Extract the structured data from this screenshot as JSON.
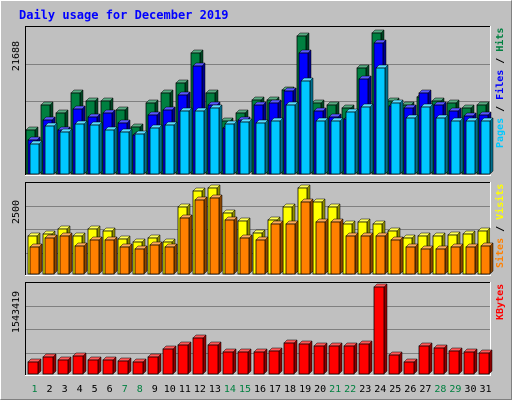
{
  "chart_data": {
    "type": "bar",
    "title": "Daily usage for December 2019",
    "categories": [
      "1",
      "2",
      "3",
      "4",
      "5",
      "6",
      "7",
      "8",
      "9",
      "10",
      "11",
      "12",
      "13",
      "14",
      "15",
      "16",
      "17",
      "18",
      "19",
      "20",
      "21",
      "22",
      "23",
      "24",
      "25",
      "26",
      "27",
      "28",
      "29",
      "30",
      "31"
    ],
    "weekend_days": [
      "1",
      "7",
      "8",
      "14",
      "15",
      "21",
      "22",
      "28",
      "29"
    ],
    "panels": [
      {
        "id": "hits-files-pages",
        "ymax": 21688,
        "ytick_label": "21688",
        "legend": [
          {
            "label": "Pages",
            "color": "#00c8ff"
          },
          {
            "label": "Files",
            "color": "#0000ff"
          },
          {
            "label": "Hits",
            "color": "#008040"
          }
        ],
        "series": [
          {
            "name": "Hits",
            "color": "#008040",
            "values": [
              6500,
              10200,
              9000,
              12000,
              10800,
              10800,
              9500,
              7000,
              10500,
              12000,
              13500,
              18000,
              12000,
              7800,
              9000,
              11000,
              11000,
              12500,
              20500,
              10500,
              10200,
              9800,
              15800,
              21000,
              10800,
              10200,
              11500,
              10800,
              10500,
              9800,
              10200
            ]
          },
          {
            "name": "Files",
            "color": "#0000ff",
            "values": [
              5000,
              8000,
              6600,
              9600,
              8500,
              9000,
              7600,
              5800,
              8800,
              9500,
              11800,
              16000,
              10200,
              6800,
              8000,
              10300,
              10500,
              12400,
              18000,
              9300,
              8500,
              8200,
              14100,
              19400,
              10100,
              9800,
              12000,
              10200,
              9300,
              8600,
              8800
            ]
          },
          {
            "name": "Pages",
            "color": "#00c8ff",
            "values": [
              4500,
              7200,
              6200,
              7400,
              7300,
              6500,
              6200,
              6000,
              6800,
              7300,
              9400,
              9400,
              9800,
              7400,
              7700,
              7600,
              7800,
              10200,
              13800,
              7800,
              7900,
              9200,
              10000,
              15700,
              10500,
              8300,
              10000,
              8300,
              7800,
              7800,
              7800
            ]
          }
        ]
      },
      {
        "id": "visits-sites",
        "ymax": 2500,
        "ytick_label": "2500",
        "legend": [
          {
            "label": "Sites",
            "color": "#ff8000"
          },
          {
            "label": "Visits",
            "color": "#ffff00"
          }
        ],
        "series": [
          {
            "name": "Visits",
            "color": "#ffff00",
            "values": [
              1050,
              1100,
              1250,
              1050,
              1250,
              1200,
              960,
              900,
              990,
              900,
              1850,
              2300,
              2400,
              1700,
              1480,
              1150,
              1500,
              1850,
              2400,
              2000,
              1860,
              1400,
              1450,
              1400,
              1200,
              1000,
              1050,
              1050,
              1080,
              1120,
              1200
            ]
          },
          {
            "name": "Sites",
            "color": "#ff8000",
            "values": [
              750,
              1000,
              1050,
              780,
              950,
              950,
              750,
              700,
              800,
              750,
              1550,
              2050,
              2100,
              1500,
              1000,
              950,
              1400,
              1400,
              2000,
              1450,
              1450,
              1050,
              1050,
              1050,
              950,
              750,
              700,
              700,
              750,
              750,
              780
            ]
          }
        ]
      },
      {
        "id": "kbytes",
        "ymax": 1543419,
        "ytick_label": "1543419",
        "legend": [
          {
            "label": "KBytes",
            "color": "#ff0000"
          }
        ],
        "series": [
          {
            "name": "KBytes",
            "color": "#ff0000",
            "values": [
              200000,
              285000,
              240000,
              310000,
              240000,
              240000,
              215000,
              200000,
              295000,
              430000,
              500000,
              620000,
              495000,
              380000,
              380000,
              380000,
              400000,
              530000,
              520000,
              480000,
              480000,
              480000,
              520000,
              1500000,
              320000,
              200000,
              480000,
              440000,
              400000,
              375000,
              355000
            ]
          }
        ]
      }
    ]
  }
}
